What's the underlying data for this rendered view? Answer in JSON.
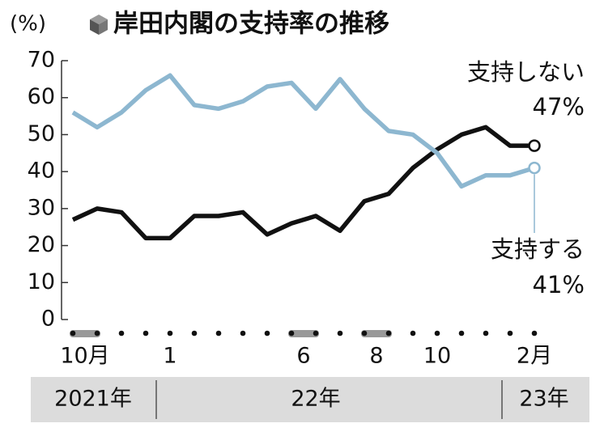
{
  "chart_data": {
    "type": "line",
    "title": "岸田内閣の支持率の推移",
    "ylabel": "(%)",
    "categories": [
      "10月",
      null,
      null,
      null,
      "1",
      null,
      null,
      null,
      null,
      "6",
      null,
      null,
      "8",
      null,
      null,
      "10",
      null,
      null,
      null,
      "2月"
    ],
    "year_labels": [
      "2021年",
      "22年",
      "23年"
    ],
    "ylim": [
      0,
      70
    ],
    "yticks": [
      0,
      10,
      20,
      30,
      40,
      50,
      60,
      70
    ],
    "series": [
      {
        "name": "支持しない",
        "color": "#111111",
        "values": [
          27,
          30,
          29,
          22,
          22,
          28,
          28,
          29,
          23,
          26,
          28,
          24,
          32,
          34,
          41,
          46,
          50,
          52,
          47,
          47
        ],
        "value_labels": [
          null,
          null,
          null,
          null,
          null,
          null,
          null,
          null,
          null,
          null,
          null,
          null,
          null,
          null,
          null,
          null,
          null,
          null,
          null,
          "47%"
        ]
      },
      {
        "name": "支持する",
        "color": "#8db7d0",
        "values": [
          56,
          52,
          56,
          62,
          66,
          58,
          57,
          59,
          63,
          64,
          57,
          65,
          57,
          51,
          50,
          45,
          36,
          39,
          39,
          41
        ],
        "value_labels": [
          null,
          null,
          null,
          null,
          null,
          null,
          null,
          null,
          null,
          null,
          null,
          null,
          null,
          null,
          null,
          null,
          null,
          null,
          null,
          "41%"
        ]
      }
    ]
  }
}
